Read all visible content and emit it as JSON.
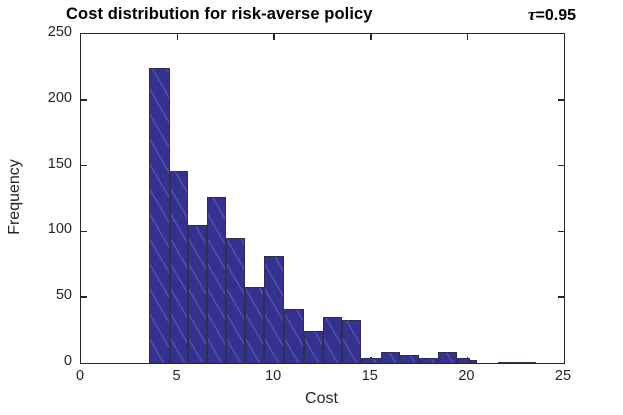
{
  "title": "Cost distribution for risk-averse policy",
  "annotation": {
    "tau_symbol": "τ",
    "tau_value": "=0.95"
  },
  "axes": {
    "x_label": "Cost",
    "y_label": "Frequency"
  },
  "colors": {
    "bar_fill": "#353191",
    "bar_edge": "#30304a",
    "axis": "#262626"
  },
  "chart_data": {
    "type": "bar",
    "subtype": "histogram",
    "title": "Cost distribution for risk-averse policy",
    "annotation": "τ=0.95",
    "xlabel": "Cost",
    "ylabel": "Frequency",
    "xlim": [
      0,
      25
    ],
    "ylim": [
      0,
      250
    ],
    "x_ticks": [
      0,
      5,
      10,
      15,
      20,
      25
    ],
    "y_ticks": [
      0,
      50,
      100,
      150,
      200,
      250
    ],
    "grid": false,
    "legend": "none",
    "bars": [
      {
        "x0": 3.52,
        "x1": 4.6,
        "count": 224
      },
      {
        "x0": 4.6,
        "x1": 5.55,
        "count": 146
      },
      {
        "x0": 5.55,
        "x1": 6.52,
        "count": 105
      },
      {
        "x0": 6.52,
        "x1": 7.5,
        "count": 126
      },
      {
        "x0": 7.5,
        "x1": 8.49,
        "count": 95
      },
      {
        "x0": 8.49,
        "x1": 9.47,
        "count": 58
      },
      {
        "x0": 9.47,
        "x1": 10.5,
        "count": 81
      },
      {
        "x0": 10.5,
        "x1": 11.54,
        "count": 41
      },
      {
        "x0": 11.54,
        "x1": 12.52,
        "count": 24
      },
      {
        "x0": 12.52,
        "x1": 13.5,
        "count": 35
      },
      {
        "x0": 13.5,
        "x1": 14.5,
        "count": 33
      },
      {
        "x0": 14.5,
        "x1": 15.52,
        "count": 4
      },
      {
        "x0": 15.52,
        "x1": 16.5,
        "count": 8
      },
      {
        "x0": 16.5,
        "x1": 17.48,
        "count": 6
      },
      {
        "x0": 17.48,
        "x1": 18.46,
        "count": 4
      },
      {
        "x0": 18.46,
        "x1": 19.45,
        "count": 8
      },
      {
        "x0": 19.45,
        "x1": 20.12,
        "count": 4
      },
      {
        "x0": 20.12,
        "x1": 20.5,
        "count": 2
      },
      {
        "x0": 21.6,
        "x1": 23.55,
        "count": 1
      }
    ]
  }
}
